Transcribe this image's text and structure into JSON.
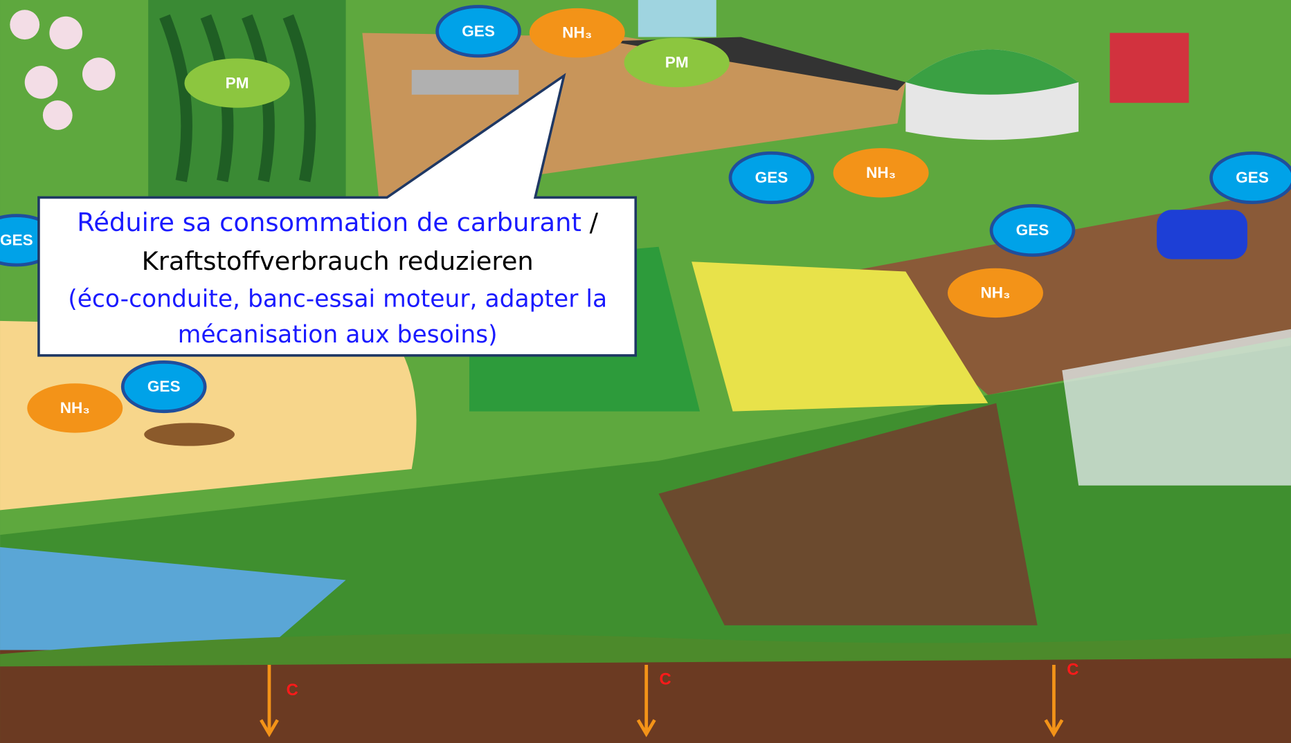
{
  "labels": {
    "ges": "GES",
    "nh3": "NH₃",
    "pm": "PM",
    "carbon": "C"
  },
  "callout": {
    "title_fr": "Réduire sa consommation de carburant",
    "separator": "/",
    "title_de": "Kraftstoffverbrauch reduzieren",
    "note_lines": [
      "(éco-conduite, banc-essai moteur, adapter la",
      "mécanisation aux besoins)"
    ]
  }
}
